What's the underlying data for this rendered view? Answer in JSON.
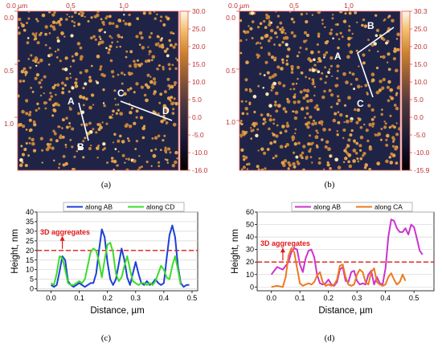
{
  "panels": {
    "a": {
      "caption": "(a)",
      "x_ticks": [
        "0.0 µm",
        "0.5",
        "1.0"
      ],
      "y_ticks": [
        "0.0",
        "0.5",
        "1.0"
      ],
      "colorbar_ticks": [
        "30.0",
        "25.0",
        "20.0",
        "15.0",
        "10.0",
        "5.0",
        "0.0",
        "-5.0",
        "-10.0",
        "-16.0"
      ],
      "points": [
        "A",
        "B",
        "C",
        "D"
      ]
    },
    "b": {
      "caption": "(b)",
      "x_ticks": [
        "0.0 µm",
        "0.5",
        "1.0"
      ],
      "y_ticks": [
        "0.0",
        "0.5",
        "1.0"
      ],
      "colorbar_ticks": [
        "30.3",
        "25.0",
        "20.0",
        "15.0",
        "10.0",
        "5.0",
        "0.0",
        "-5.0",
        "-10.0",
        "-15.9"
      ],
      "points": [
        "A",
        "B",
        "C"
      ]
    },
    "c": {
      "caption": "(c)"
    },
    "d": {
      "caption": "(d)"
    }
  },
  "chart_data": [
    {
      "type": "line",
      "panel": "c",
      "xlabel": "Distance, µm",
      "ylabel": "Height, nm",
      "xlim": [
        -0.05,
        0.52
      ],
      "ylim": [
        -1,
        40
      ],
      "xticks": [
        0.0,
        0.1,
        0.2,
        0.3,
        0.4,
        0.5
      ],
      "xtick_labels": [
        "0.0",
        "0.1",
        "0.2",
        "0.3",
        "0.4",
        "0.5"
      ],
      "yticks": [
        0,
        5,
        10,
        15,
        20,
        25,
        30,
        35,
        40
      ],
      "grid": true,
      "legend": "top",
      "threshold": {
        "y": 20,
        "label": "3D aggregates"
      },
      "series": [
        {
          "name": "along AB",
          "color": "#1f3fd6",
          "x": [
            0.0,
            0.01,
            0.02,
            0.03,
            0.04,
            0.05,
            0.06,
            0.07,
            0.08,
            0.09,
            0.1,
            0.11,
            0.12,
            0.13,
            0.14,
            0.15,
            0.16,
            0.17,
            0.18,
            0.19,
            0.2,
            0.21,
            0.22,
            0.23,
            0.24,
            0.25,
            0.26,
            0.27,
            0.28,
            0.29,
            0.3,
            0.31,
            0.32,
            0.33,
            0.34,
            0.35,
            0.36,
            0.37,
            0.38,
            0.39,
            0.4,
            0.41,
            0.42,
            0.43,
            0.44,
            0.45,
            0.46,
            0.47,
            0.48,
            0.49
          ],
          "y": [
            2,
            1,
            2,
            9,
            17,
            15,
            4,
            2,
            1,
            2,
            3,
            2,
            1,
            2,
            3,
            3,
            8,
            20,
            31,
            27,
            14,
            5,
            2,
            5,
            13,
            21,
            15,
            6,
            2,
            8,
            14,
            8,
            3,
            2,
            4,
            2,
            3,
            5,
            3,
            2,
            3,
            16,
            28,
            33,
            27,
            12,
            3,
            1,
            2,
            2
          ]
        },
        {
          "name": "along CD",
          "color": "#3ddc29",
          "x": [
            0.0,
            0.01,
            0.02,
            0.03,
            0.04,
            0.05,
            0.06,
            0.07,
            0.08,
            0.09,
            0.1,
            0.11,
            0.12,
            0.13,
            0.14,
            0.15,
            0.16,
            0.17,
            0.18,
            0.19,
            0.2,
            0.21,
            0.22,
            0.23,
            0.24,
            0.25,
            0.26,
            0.27,
            0.28,
            0.29,
            0.3,
            0.31,
            0.32,
            0.33,
            0.34,
            0.35,
            0.36,
            0.37,
            0.38,
            0.39,
            0.4,
            0.41,
            0.42,
            0.43,
            0.44,
            0.45,
            0.46
          ],
          "y": [
            3,
            2,
            8,
            17,
            16,
            10,
            3,
            2,
            2,
            3,
            4,
            3,
            5,
            12,
            19,
            21,
            20,
            14,
            6,
            15,
            23,
            24,
            19,
            8,
            4,
            6,
            12,
            17,
            10,
            4,
            3,
            2,
            3,
            3,
            2,
            3,
            2,
            4,
            8,
            12,
            10,
            6,
            5,
            12,
            17,
            10,
            2
          ]
        }
      ]
    },
    {
      "type": "line",
      "panel": "d",
      "xlabel": "Distance, µm",
      "ylabel": "Height, nm",
      "xlim": [
        -0.05,
        0.57
      ],
      "ylim": [
        -3,
        60
      ],
      "xticks": [
        0.0,
        0.1,
        0.2,
        0.3,
        0.4,
        0.5
      ],
      "xtick_labels": [
        "0.0",
        "0.1",
        "0.2",
        "0.3",
        "0.4",
        "0.5"
      ],
      "yticks": [
        0,
        10,
        20,
        30,
        40,
        50,
        60
      ],
      "grid": true,
      "legend": "top",
      "threshold": {
        "y": 20,
        "label": "3D aggregates"
      },
      "series": [
        {
          "name": "along AB",
          "color": "#cc33cc",
          "x": [
            0.0,
            0.02,
            0.04,
            0.06,
            0.07,
            0.08,
            0.09,
            0.1,
            0.11,
            0.12,
            0.13,
            0.14,
            0.15,
            0.16,
            0.17,
            0.18,
            0.19,
            0.2,
            0.21,
            0.22,
            0.23,
            0.24,
            0.25,
            0.26,
            0.27,
            0.28,
            0.29,
            0.3,
            0.31,
            0.32,
            0.33,
            0.34,
            0.35,
            0.36,
            0.37,
            0.38,
            0.39,
            0.4,
            0.41,
            0.42,
            0.43,
            0.44,
            0.45,
            0.46,
            0.47,
            0.48,
            0.49,
            0.5,
            0.51,
            0.52,
            0.53
          ],
          "y": [
            10,
            16,
            14,
            20,
            28,
            31,
            30,
            18,
            12,
            23,
            29,
            30,
            24,
            10,
            3,
            2,
            3,
            6,
            2,
            1,
            4,
            14,
            16,
            5,
            4,
            12,
            13,
            5,
            2,
            3,
            2,
            10,
            13,
            2,
            8,
            3,
            2,
            15,
            40,
            54,
            53,
            47,
            44,
            44,
            47,
            42,
            50,
            48,
            39,
            29,
            26
          ]
        },
        {
          "name": "along CA",
          "color": "#ee7a1c",
          "x": [
            0.0,
            0.02,
            0.04,
            0.05,
            0.06,
            0.07,
            0.08,
            0.09,
            0.1,
            0.11,
            0.12,
            0.13,
            0.14,
            0.15,
            0.16,
            0.17,
            0.18,
            0.19,
            0.2,
            0.21,
            0.22,
            0.23,
            0.24,
            0.25,
            0.26,
            0.27,
            0.28,
            0.29,
            0.3,
            0.31,
            0.32,
            0.33,
            0.34,
            0.35,
            0.36,
            0.37,
            0.38,
            0.39,
            0.4,
            0.41,
            0.42,
            0.43,
            0.44,
            0.45,
            0.46,
            0.47
          ],
          "y": [
            0,
            1,
            0,
            8,
            25,
            31,
            28,
            15,
            3,
            1,
            2,
            3,
            2,
            4,
            9,
            12,
            4,
            1,
            2,
            1,
            2,
            6,
            17,
            18,
            8,
            2,
            1,
            2,
            10,
            14,
            12,
            4,
            2,
            12,
            15,
            4,
            2,
            1,
            2,
            8,
            11,
            6,
            2,
            4,
            10,
            5
          ]
        }
      ]
    }
  ]
}
